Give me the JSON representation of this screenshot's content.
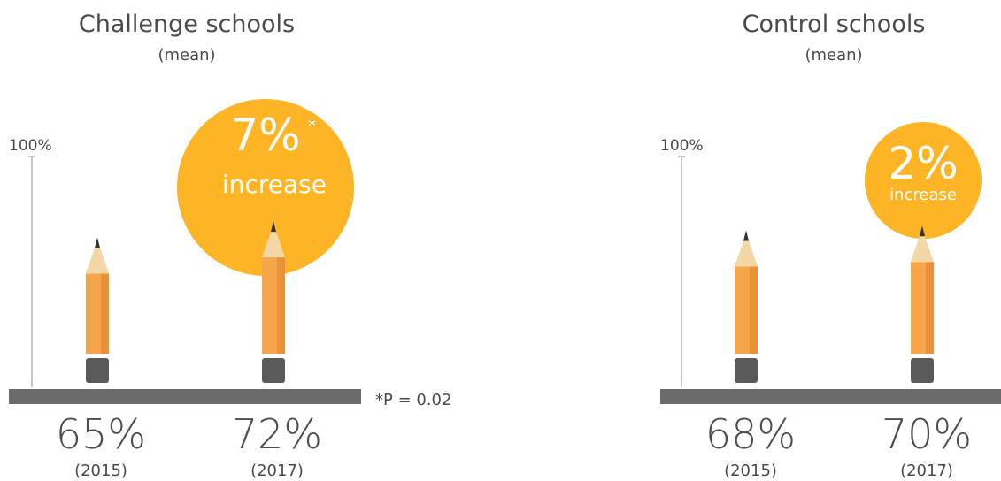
{
  "colors": {
    "badge": "#fdb525",
    "pencil_body": "#f7a54a",
    "pencil_shade": "#e9913a",
    "pencil_wood": "#f3d7a6",
    "pencil_tip": "#333333",
    "eraser": "#5a5a5a",
    "baseline": "#6b6b6b"
  },
  "chart_data": [
    {
      "type": "bar",
      "title": "Challenge schools",
      "subtitle": "(mean)",
      "ylabel": "100%",
      "ylim": [
        0,
        100
      ],
      "categories": [
        "(2015)",
        "(2017)"
      ],
      "values": [
        65,
        72
      ],
      "value_labels": [
        "65%",
        "72%"
      ],
      "annotation": {
        "value": "7%",
        "marker": "*",
        "text": "increase"
      },
      "footnote": "*P = 0.02"
    },
    {
      "type": "bar",
      "title": "Control schools",
      "subtitle": "(mean)",
      "ylabel": "100%",
      "ylim": [
        0,
        100
      ],
      "categories": [
        "(2015)",
        "(2017)"
      ],
      "values": [
        68,
        70
      ],
      "value_labels": [
        "68%",
        "70%"
      ],
      "annotation": {
        "value": "2%",
        "text": "increase"
      }
    }
  ]
}
